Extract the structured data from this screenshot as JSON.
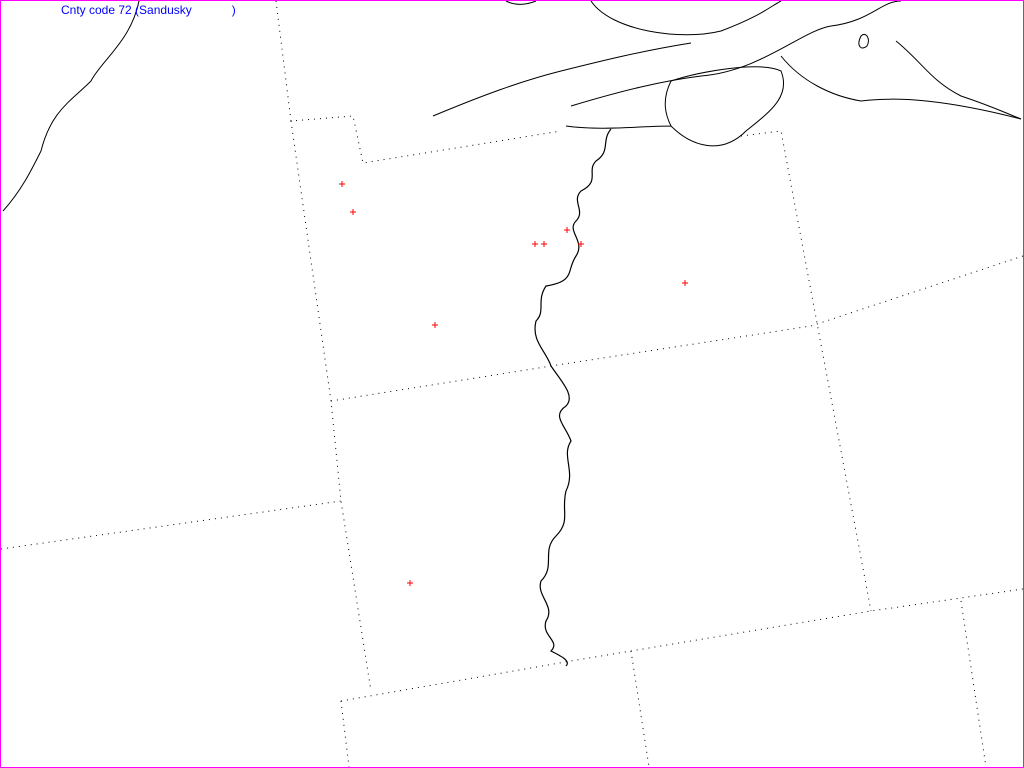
{
  "map": {
    "title": "Cnty code 72 (Sandusky            )",
    "border_color": "#ff00ff",
    "title_color": "#0000ff",
    "marker_color": "#ff0000",
    "marker_symbol": "+",
    "marker_count": 9
  }
}
